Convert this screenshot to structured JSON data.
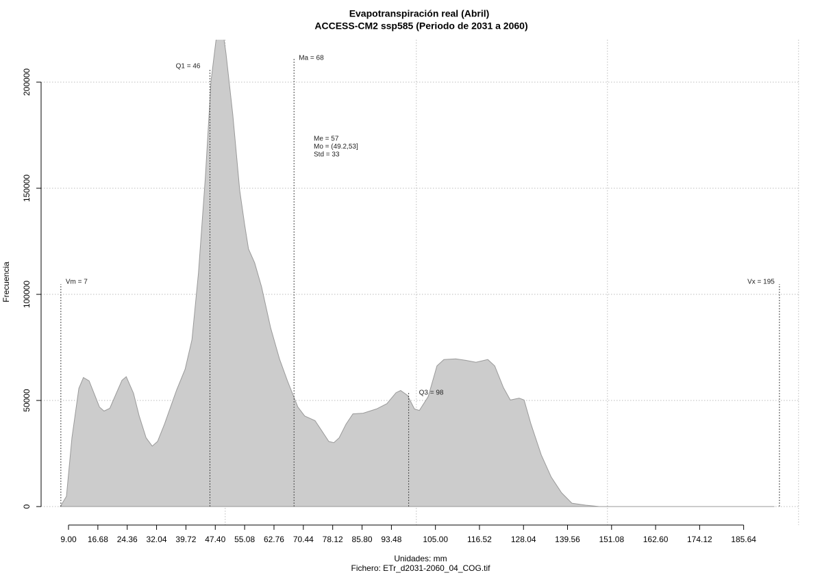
{
  "chart_data": {
    "type": "area",
    "title": "Evapotranspiración real (Abril)",
    "subtitle": "ACCESS-CM2 ssp585 (Periodo de 2031 a 2060)",
    "xlabel": "Unidades: mm",
    "caption": "Fichero: ETr_d2031-2060_04_COG.tif",
    "ylabel": "Frecuencia",
    "color": "#cccccc",
    "x": [
      6.85,
      8.46,
      9.9,
      11.7,
      12.9,
      14.4,
      17.1,
      18.3,
      19.8,
      21.5,
      23.0,
      24.1,
      26.0,
      27.5,
      29.3,
      30.9,
      32.3,
      34.1,
      37.3,
      39.5,
      41.3,
      43.0,
      44.8,
      46.3,
      47.5,
      48.1,
      49.3,
      50.2,
      52.0,
      53.8,
      55.1,
      56.1,
      57.7,
      59.5,
      61.9,
      64.2,
      66.3,
      69.0,
      70.8,
      73.5,
      75.3,
      77.1,
      78.4,
      79.8,
      81.6,
      83.4,
      86.1,
      89.6,
      92.3,
      94.7,
      95.9,
      97.7,
      99.5,
      100.8,
      103.1,
      105.4,
      107.2,
      110.3,
      112.9,
      115.6,
      118.7,
      120.5,
      122.8,
      124.6,
      126.9,
      128.2,
      130.0,
      132.7,
      135.3,
      138.0,
      140.7,
      144.3,
      147.9,
      193.6
    ],
    "values": [
      0,
      4850,
      32400,
      55700,
      60800,
      59200,
      46900,
      45000,
      46300,
      53400,
      59500,
      61200,
      53400,
      42700,
      32400,
      28500,
      30700,
      38800,
      55000,
      64700,
      78600,
      110000,
      155300,
      200600,
      218400,
      226500,
      225000,
      213600,
      184500,
      148900,
      132700,
      121400,
      114900,
      103600,
      84100,
      69600,
      59200,
      46900,
      42700,
      40500,
      35600,
      30700,
      30100,
      32400,
      38800,
      43700,
      44000,
      46000,
      48500,
      53700,
      54700,
      52400,
      46000,
      45300,
      51800,
      66300,
      69300,
      69600,
      68900,
      68000,
      69300,
      66300,
      56000,
      50200,
      51100,
      50200,
      38800,
      24300,
      13900,
      6500,
      1600,
      650,
      0,
      0
    ],
    "xlim": [
      1.83,
      200.4
    ],
    "ylim": [
      -8700,
      220000
    ],
    "xticks": [
      {
        "value": 9,
        "label": "9.00"
      },
      16.68,
      24.36,
      32.04,
      39.72,
      {
        "value": 47.4,
        "label": "47.40"
      },
      55.08,
      62.76,
      70.44,
      78.12,
      {
        "value": 85.8,
        "label": "85.80"
      },
      93.48,
      {
        "value": 105,
        "label": "105.00"
      },
      116.52,
      128.04,
      139.56,
      151.08,
      {
        "value": 162.6,
        "label": "162.60"
      },
      174.12,
      185.64
    ],
    "yticks": [
      0,
      50000,
      100000,
      150000,
      200000
    ],
    "xgrid": [
      50,
      100,
      150,
      200
    ],
    "grid": true,
    "markers": [
      {
        "label": "Vm = 7",
        "x": 7
      },
      {
        "label": "Q1 = 46",
        "x": 46
      },
      {
        "label": "Ma = 68",
        "x": 68
      },
      {
        "label": "Q3 = 98",
        "x": 98
      },
      {
        "label": "Vx = 195",
        "x": 195
      }
    ],
    "stats": [
      "Me = 57",
      "Mo = (49.2,53]",
      "Std = 33"
    ]
  }
}
